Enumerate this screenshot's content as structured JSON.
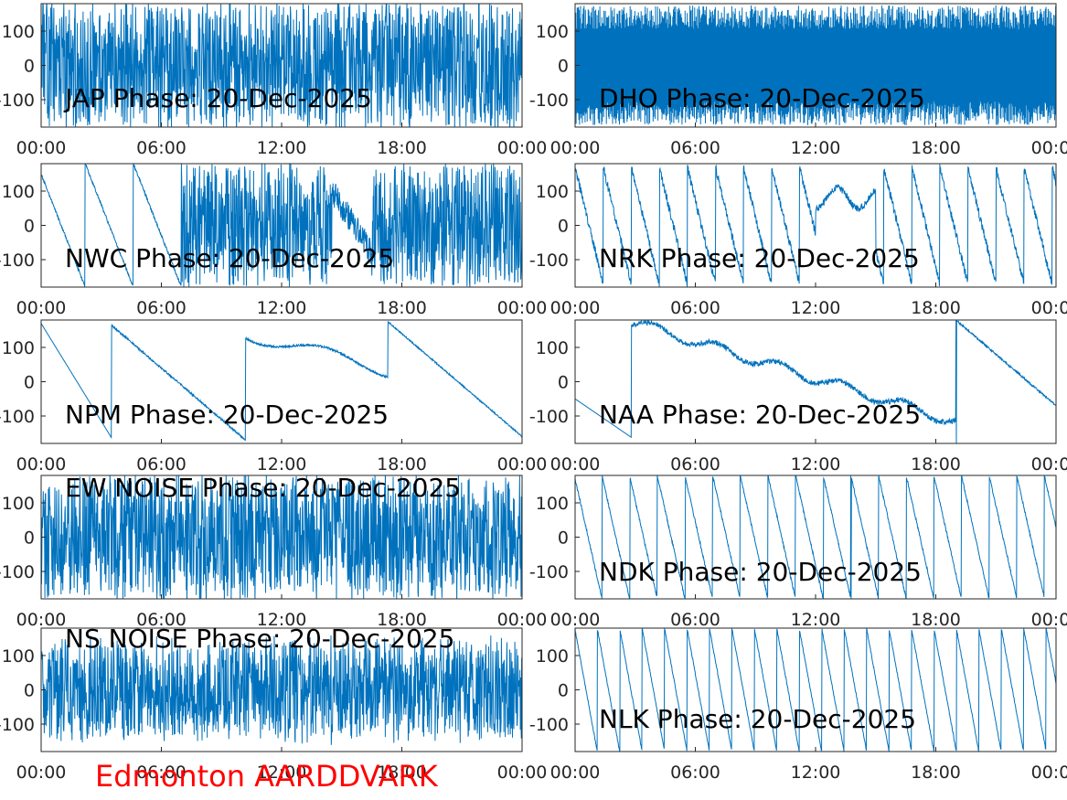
{
  "figure": {
    "station_label": "Edmonton AARDDVARK",
    "station_label_color": "#ff0000",
    "series_color": "#0072bd",
    "axis_color": "#262626"
  },
  "chart_data": [
    {
      "type": "line",
      "title": "JAP Phase: 20-Dec-2025",
      "pattern": "noise",
      "seed": 11,
      "amp": 1.0,
      "x_ticks": [
        "00:00",
        "06:00",
        "12:00",
        "18:00",
        "00:00"
      ],
      "y_ticks": [
        "100",
        "0",
        "-100"
      ],
      "ylim": [
        -180,
        180
      ],
      "xlim_hours": [
        0,
        24
      ]
    },
    {
      "type": "line",
      "title": "DHO Phase: 20-Dec-2025",
      "pattern": "dense",
      "seed": 12,
      "amp": 1.0,
      "x_ticks": [
        "00:00",
        "06:00",
        "12:00",
        "18:00",
        "00:00"
      ],
      "y_ticks": [
        "100",
        "0",
        "-100"
      ],
      "ylim": [
        -180,
        180
      ],
      "xlim_hours": [
        0,
        24
      ]
    },
    {
      "type": "line",
      "title": "NWC Phase: 20-Dec-2025",
      "pattern": "nwc",
      "seed": 13,
      "amp": 1.0,
      "x_ticks": [
        "00:00",
        "06:00",
        "12:00",
        "18:00",
        "00:00"
      ],
      "y_ticks": [
        "100",
        "0",
        "-100"
      ],
      "ylim": [
        -180,
        180
      ],
      "xlim_hours": [
        0,
        24
      ]
    },
    {
      "type": "line",
      "title": "NRK Phase: 20-Dec-2025",
      "pattern": "nrk",
      "seed": 14,
      "amp": 1.0,
      "x_ticks": [
        "00:00",
        "06:00",
        "12:00",
        "18:00",
        "00:00"
      ],
      "y_ticks": [
        "100",
        "0",
        "-100"
      ],
      "ylim": [
        -180,
        180
      ],
      "xlim_hours": [
        0,
        24
      ]
    },
    {
      "type": "line",
      "title": "NPM Phase: 20-Dec-2025",
      "pattern": "npm",
      "seed": 15,
      "amp": 1.0,
      "x_ticks": [
        "00:00",
        "06:00",
        "12:00",
        "18:00",
        "00:00"
      ],
      "y_ticks": [
        "100",
        "0",
        "-100"
      ],
      "ylim": [
        -180,
        180
      ],
      "xlim_hours": [
        0,
        24
      ]
    },
    {
      "type": "line",
      "title": "NAA Phase: 20-Dec-2025",
      "pattern": "naa",
      "seed": 16,
      "amp": 1.0,
      "x_ticks": [
        "00:00",
        "06:00",
        "12:00",
        "18:00",
        "00:00"
      ],
      "y_ticks": [
        "100",
        "0",
        "-100"
      ],
      "ylim": [
        -180,
        180
      ],
      "xlim_hours": [
        0,
        24
      ]
    },
    {
      "type": "line",
      "title": "EW NOISE Phase: 20-Dec-2025",
      "pattern": "noise",
      "seed": 17,
      "amp": 1.0,
      "x_ticks": [
        "00:00",
        "06:00",
        "12:00",
        "18:00",
        "00:00"
      ],
      "y_ticks": [
        "100",
        "0",
        "-100"
      ],
      "ylim": [
        -180,
        180
      ],
      "xlim_hours": [
        0,
        24
      ]
    },
    {
      "type": "line",
      "title": "NDK Phase: 20-Dec-2025",
      "pattern": "ndk",
      "seed": 18,
      "amp": 1.0,
      "x_ticks": [
        "00:00",
        "06:00",
        "12:00",
        "18:00",
        "00:00"
      ],
      "y_ticks": [
        "100",
        "0",
        "-100"
      ],
      "ylim": [
        -180,
        180
      ],
      "xlim_hours": [
        0,
        24
      ]
    },
    {
      "type": "line",
      "title": "NS NOISE Phase: 20-Dec-2025",
      "pattern": "noise",
      "seed": 19,
      "amp": 0.8,
      "x_ticks": [
        "00:00",
        "06:00",
        "12:00",
        "18:00",
        "00:00"
      ],
      "y_ticks": [
        "100",
        "0",
        "-100"
      ],
      "ylim": [
        -180,
        180
      ],
      "xlim_hours": [
        0,
        24
      ]
    },
    {
      "type": "line",
      "title": "NLK Phase: 20-Dec-2025",
      "pattern": "nlk",
      "seed": 20,
      "amp": 1.0,
      "x_ticks": [
        "00:00",
        "06:00",
        "12:00",
        "18:00",
        "00:00"
      ],
      "y_ticks": [
        "100",
        "0",
        "-100"
      ],
      "ylim": [
        -180,
        180
      ],
      "xlim_hours": [
        0,
        24
      ]
    }
  ]
}
